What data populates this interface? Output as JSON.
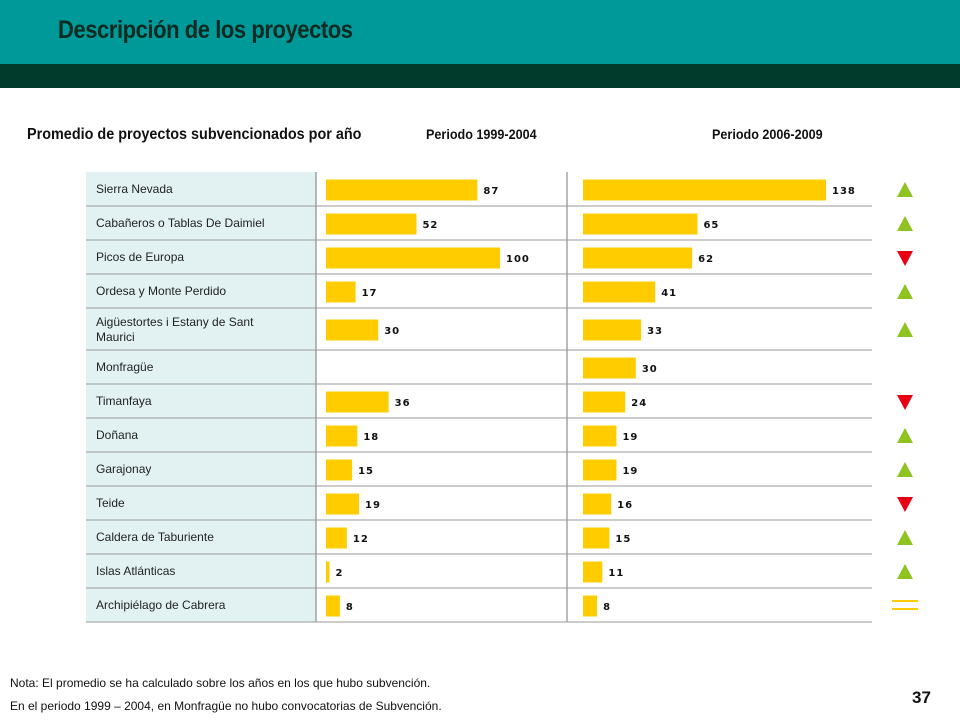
{
  "header": {
    "title": "Descripción de los proyectos"
  },
  "section_title": "Promedio de proyectos subvencionados por año",
  "periods": [
    "Periodo 1999-2004",
    "Periodo 2006-2009"
  ],
  "colors": {
    "bar": "#ffcc00",
    "up": "#8fc31f",
    "down": "#e60012",
    "equal": "#ffcc00",
    "label_bg": "#e2f2f3"
  },
  "chart_data": {
    "type": "bar",
    "orientation": "horizontal",
    "categories": [
      "Sierra Nevada",
      "Cabañeros o Tablas De Daimiel",
      "Picos de Europa",
      "Ordesa y Monte Perdido",
      "Aigüestortes i Estany de Sant Maurici",
      "Monfragüe",
      "Timanfaya",
      "Doñana",
      "Garajonay",
      "Teide",
      "Caldera de Taburiente",
      "Islas Atlánticas",
      "Archipiélago de Cabrera"
    ],
    "series": [
      {
        "name": "Periodo 1999-2004",
        "values": [
          87,
          52,
          100,
          17,
          30,
          null,
          36,
          18,
          15,
          19,
          12,
          2,
          8
        ]
      },
      {
        "name": "Periodo 2006-2009",
        "values": [
          138,
          65,
          62,
          41,
          33,
          30,
          24,
          19,
          19,
          16,
          15,
          11,
          8
        ]
      }
    ],
    "trend": [
      "up",
      "up",
      "down",
      "up",
      "up",
      "",
      "down",
      "up",
      "up",
      "down",
      "up",
      "up",
      "equal"
    ]
  },
  "notes": [
    "Nota: El promedio se ha calculado sobre los años en los que hubo subvención.",
    "En el periodo 1999 – 2004, en Monfragüe no hubo convocatorias de Subvención."
  ],
  "page_number": "37"
}
